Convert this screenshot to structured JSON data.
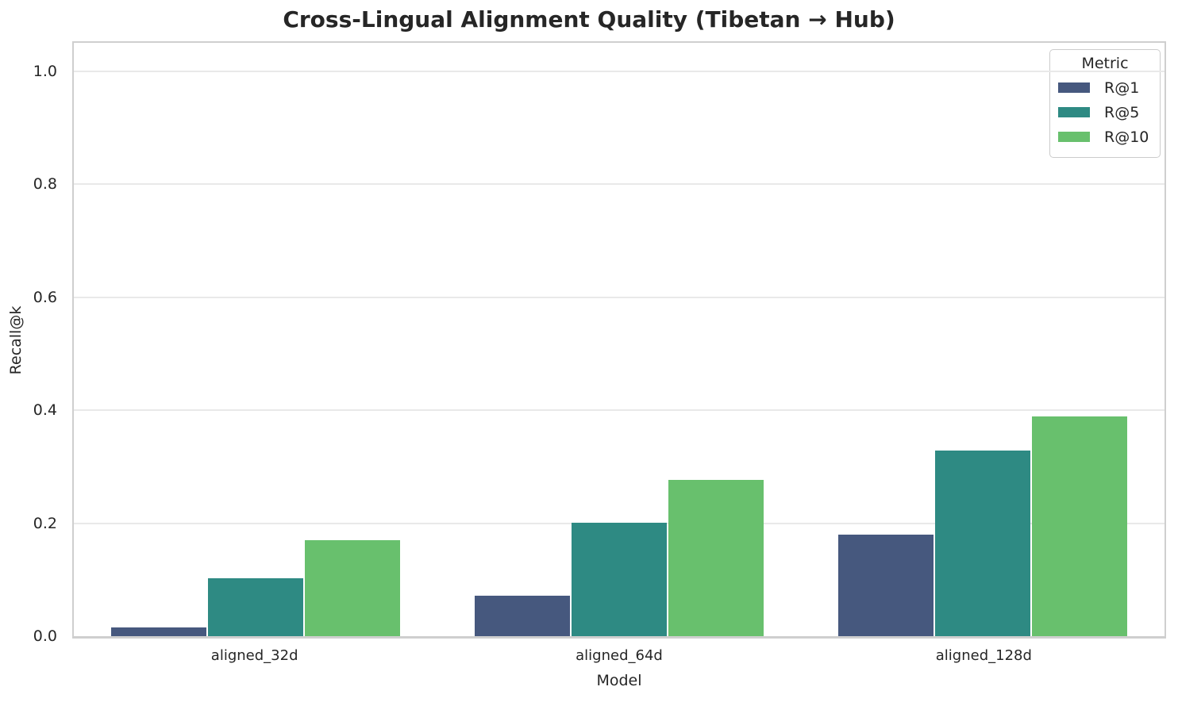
{
  "chart_data": {
    "type": "bar",
    "title": "Cross-Lingual Alignment Quality (Tibetan → Hub)",
    "xlabel": "Model",
    "ylabel": "Recall@k",
    "categories": [
      "aligned_32d",
      "aligned_64d",
      "aligned_128d"
    ],
    "series": [
      {
        "name": "R@1",
        "color": "#46587e",
        "values": [
          0.015,
          0.072,
          0.18
        ]
      },
      {
        "name": "R@5",
        "color": "#2e8a83",
        "values": [
          0.103,
          0.201,
          0.329
        ]
      },
      {
        "name": "R@10",
        "color": "#68c06d",
        "values": [
          0.17,
          0.276,
          0.389
        ]
      }
    ],
    "ylim": [
      0,
      1.05
    ],
    "yticks": [
      0.0,
      0.2,
      0.4,
      0.6,
      0.8,
      1.0
    ],
    "ytick_labels": [
      "0.0",
      "0.2",
      "0.4",
      "0.6",
      "0.8",
      "1.0"
    ],
    "grid": true,
    "legend": {
      "title": "Metric",
      "position": "upper-right"
    }
  },
  "colors": {
    "text": "#262626",
    "grid": "#e9e9e9",
    "spine": "#cfcfcf",
    "background": "#ffffff"
  }
}
